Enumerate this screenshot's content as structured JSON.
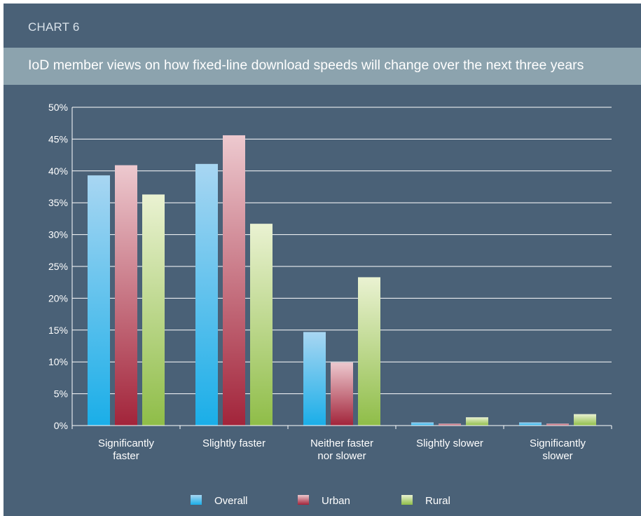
{
  "header": {
    "chart_label": "CHART 6",
    "title": "IoD member views on how fixed-line download speeds will change over the next three years"
  },
  "colors": {
    "background": "#4a6177",
    "title_band": "#8ca3ae",
    "gridline": "#ffffff",
    "overall_top": "#a8d6f2",
    "overall_bottom": "#1aaee8",
    "urban_top": "#edc9cf",
    "urban_bottom": "#a2243a",
    "rural_top": "#eaf2d2",
    "rural_bottom": "#8fbd48"
  },
  "chart_data": {
    "type": "bar",
    "title": "IoD member views on how fixed-line download speeds will change over the next three years",
    "xlabel": "",
    "ylabel": "",
    "ylim": [
      0,
      50
    ],
    "yticks": [
      0,
      5,
      10,
      15,
      20,
      25,
      30,
      35,
      40,
      45,
      50
    ],
    "ytick_labels": [
      "0%",
      "5%",
      "10%",
      "15%",
      "20%",
      "25%",
      "30%",
      "35%",
      "40%",
      "45%",
      "50%"
    ],
    "grid": true,
    "legend_position": "bottom",
    "categories": [
      [
        "Significantly",
        "faster"
      ],
      [
        "Slightly faster"
      ],
      [
        "Neither faster",
        "nor slower"
      ],
      [
        "Slightly slower"
      ],
      [
        "Significantly",
        "slower"
      ]
    ],
    "series": [
      {
        "name": "Overall",
        "values": [
          39.3,
          41.1,
          14.7,
          0.5,
          0.5
        ]
      },
      {
        "name": "Urban",
        "values": [
          40.9,
          45.6,
          9.9,
          0.3,
          0.3
        ]
      },
      {
        "name": "Rural",
        "values": [
          36.3,
          31.7,
          23.3,
          1.3,
          1.8
        ]
      }
    ]
  }
}
